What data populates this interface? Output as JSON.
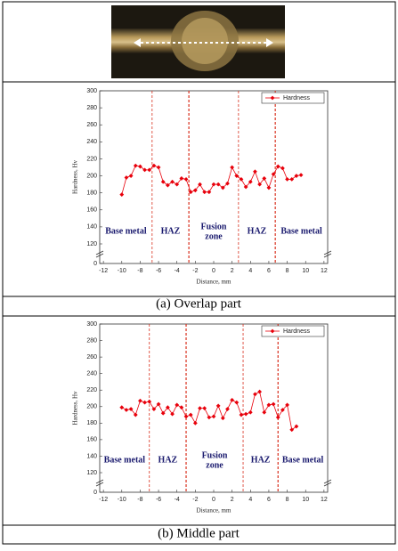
{
  "chart_data": [
    {
      "type": "line",
      "caption": "(a)  Overlap part",
      "xlabel": "Distance, mm",
      "ylabel": "Hardness, Hv",
      "xlim": [
        -12.4,
        12.4
      ],
      "xticks": [
        -12,
        -10,
        -8,
        -6,
        -4,
        -2,
        0,
        2,
        4,
        6,
        8,
        10,
        12
      ],
      "ylim": [
        0,
        300
      ],
      "axis_break": [
        0,
        120
      ],
      "yticks": [
        0,
        120,
        140,
        160,
        180,
        200,
        220,
        240,
        260,
        280,
        300
      ],
      "legend": "upper right",
      "boundaries": [
        -6.7,
        -2.7,
        2.7,
        6.7
      ],
      "boundary_color": "#d9301e",
      "regions": [
        [
          "Base metal"
        ],
        [
          "HAZ"
        ],
        [
          "Fusion",
          "zone"
        ],
        [
          "HAZ"
        ],
        [
          "Base metal"
        ]
      ],
      "series": [
        {
          "name": "Hardness",
          "color": "#e8000b",
          "x": [
            -10,
            -9.5,
            -9,
            -8.5,
            -8,
            -7.5,
            -7,
            -6.5,
            -6,
            -5.5,
            -5,
            -4.5,
            -4,
            -3.5,
            -3,
            -2.5,
            -2,
            -1.5,
            -1,
            -0.5,
            0,
            0.5,
            1,
            1.5,
            2,
            2.5,
            3,
            3.5,
            4,
            4.5,
            5,
            5.5,
            6,
            6.5,
            7,
            7.5,
            8,
            8.5,
            9,
            9.5
          ],
          "values": [
            178,
            198,
            200,
            212,
            211,
            207,
            207,
            212,
            210,
            193,
            189,
            193,
            190,
            197,
            196,
            181,
            183,
            190,
            181,
            181,
            190,
            190,
            186,
            191,
            210,
            200,
            196,
            187,
            193,
            205,
            190,
            197,
            186,
            202,
            211,
            209,
            196,
            196,
            200,
            201
          ]
        }
      ]
    },
    {
      "type": "line",
      "caption": "(b)  Middle part",
      "xlabel": "Distance, mm",
      "ylabel": "Hardness, Hv",
      "xlim": [
        -12.4,
        12.4
      ],
      "xticks": [
        -12,
        -10,
        -8,
        -6,
        -4,
        -2,
        0,
        2,
        4,
        6,
        8,
        10,
        12
      ],
      "ylim": [
        0,
        300
      ],
      "axis_break": [
        0,
        120
      ],
      "yticks": [
        0,
        120,
        140,
        160,
        180,
        200,
        220,
        240,
        260,
        280,
        300
      ],
      "legend": "upper right",
      "boundaries": [
        -7,
        -3,
        3.2,
        7
      ],
      "boundary_color": "#d9301e",
      "regions": [
        [
          "Base metal"
        ],
        [
          "HAZ"
        ],
        [
          "Fusion",
          "zone"
        ],
        [
          "HAZ"
        ],
        [
          "Base metal"
        ]
      ],
      "series": [
        {
          "name": "Hardness",
          "color": "#e8000b",
          "x": [
            -10,
            -9.5,
            -9,
            -8.5,
            -8,
            -7.5,
            -7,
            -6.5,
            -6,
            -5.5,
            -5,
            -4.5,
            -4,
            -3.5,
            -3,
            -2.5,
            -2,
            -1.5,
            -1,
            -0.5,
            0,
            0.5,
            1,
            1.5,
            2,
            2.5,
            3,
            3.5,
            4,
            4.5,
            5,
            5.5,
            6,
            6.5,
            7,
            7.5,
            8,
            8.5,
            9
          ],
          "values": [
            199,
            196,
            197,
            190,
            207,
            205,
            206,
            197,
            203,
            192,
            199,
            191,
            202,
            199,
            188,
            190,
            180,
            198,
            198,
            187,
            188,
            201,
            186,
            197,
            208,
            205,
            190,
            191,
            193,
            215,
            218,
            193,
            202,
            203,
            187,
            196,
            202,
            172,
            176
          ]
        }
      ]
    }
  ]
}
